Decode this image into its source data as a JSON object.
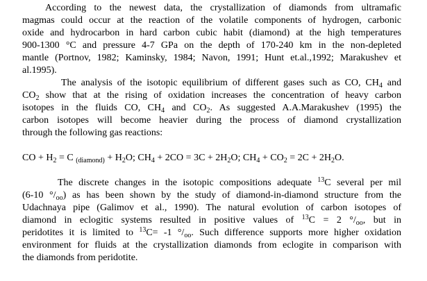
{
  "document": {
    "lines": [
      {
        "indent": 33,
        "justify": true,
        "segs": [
          "According to the newest data, the crystallization of diamonds from ultramafic"
        ]
      },
      {
        "indent": 0,
        "justify": true,
        "segs": [
          "magmas could occur at the reaction of the volatile components of hydrogen, carbonic"
        ]
      },
      {
        "indent": 0,
        "justify": true,
        "segs": [
          "oxide and hydrocarbon in hard carbon cubic habit (diamond) at the high temperatures"
        ]
      },
      {
        "indent": 0,
        "justify": true,
        "segs": [
          "900-1300 °C and pressure 4-7 GPa on the depth of 170-240 km in the non-depleted"
        ]
      },
      {
        "indent": 0,
        "justify": true,
        "segs": [
          "mantle (Portnov, 1982; Kaminsky, 1984; Navon, 1991; Hunt et.al.,1992; Marakushev et"
        ]
      },
      {
        "indent": 0,
        "justify": false,
        "segs": [
          "al.1995)."
        ]
      },
      {
        "indent": 56,
        "justify": true,
        "segs": [
          "The analysis of the isotopic equilibrium of different gases such as CO, CH",
          {
            "sub": "4"
          },
          " and"
        ]
      },
      {
        "indent": 0,
        "justify": true,
        "segs": [
          "CO",
          {
            "sub": "2"
          },
          " show that at the rising of oxidation increases the concentration of heavy carbon"
        ]
      },
      {
        "indent": 0,
        "justify": true,
        "segs": [
          "isotopes in the fluids CO, CH",
          {
            "sub": "4"
          },
          " and CO",
          {
            "sub": "2"
          },
          ". As suggested A.A.Marakushev  (1995) the"
        ]
      },
      {
        "indent": 0,
        "justify": true,
        "segs": [
          "carbon isotopes will become heavier during the process of diamond crystallization"
        ]
      },
      {
        "indent": 0,
        "justify": false,
        "segs": [
          "through the following gas reactions:"
        ]
      },
      {
        "indent": 0,
        "justify": false,
        "gap": true,
        "segs": [
          "CO + H",
          {
            "sub": "2"
          },
          " = C ",
          {
            "sub": "(diamond)"
          },
          " + H",
          {
            "sub": "2"
          },
          "O; CH",
          {
            "sub": "4"
          },
          " + 2CO = 3C + 2H",
          {
            "sub": "2"
          },
          "O; CH",
          {
            "sub": "4"
          },
          " + CO",
          {
            "sub": "2"
          },
          " = 2C + 2H",
          {
            "sub": "2"
          },
          "O."
        ]
      },
      {
        "indent": 51,
        "justify": true,
        "gap": true,
        "segs": [
          "The discrete changes in the isotopic compositions adequate ",
          {
            "sup": "13"
          },
          "C several per mil"
        ]
      },
      {
        "indent": 0,
        "justify": true,
        "segs": [
          "(6-10 °/",
          {
            "sub": "oo"
          },
          ") as has been shown by the study of diamond-in-diamond structure from the"
        ]
      },
      {
        "indent": 0,
        "justify": true,
        "segs": [
          "Udachnaya pipe (Galimov et al., 1990). The natural evolution of carbon isotopes of"
        ]
      },
      {
        "indent": 0,
        "justify": true,
        "segs": [
          "diamond in eclogitic systems resulted in positive values of    ",
          {
            "sup": "13"
          },
          "C = 2 °/",
          {
            "sub": "oo"
          },
          ", but in"
        ]
      },
      {
        "indent": 0,
        "justify": true,
        "segs": [
          "peridotites it is limited to ",
          {
            "sup": "13"
          },
          "C= -1 °/",
          {
            "sub": "oo"
          },
          ". Such difference supports more  higher oxidation"
        ]
      },
      {
        "indent": 0,
        "justify": true,
        "segs": [
          "environment for fluids at the crystallization diamonds from eclogite in comparison with"
        ]
      },
      {
        "indent": 0,
        "justify": false,
        "segs": [
          "the diamonds from  peridotite."
        ]
      }
    ]
  }
}
